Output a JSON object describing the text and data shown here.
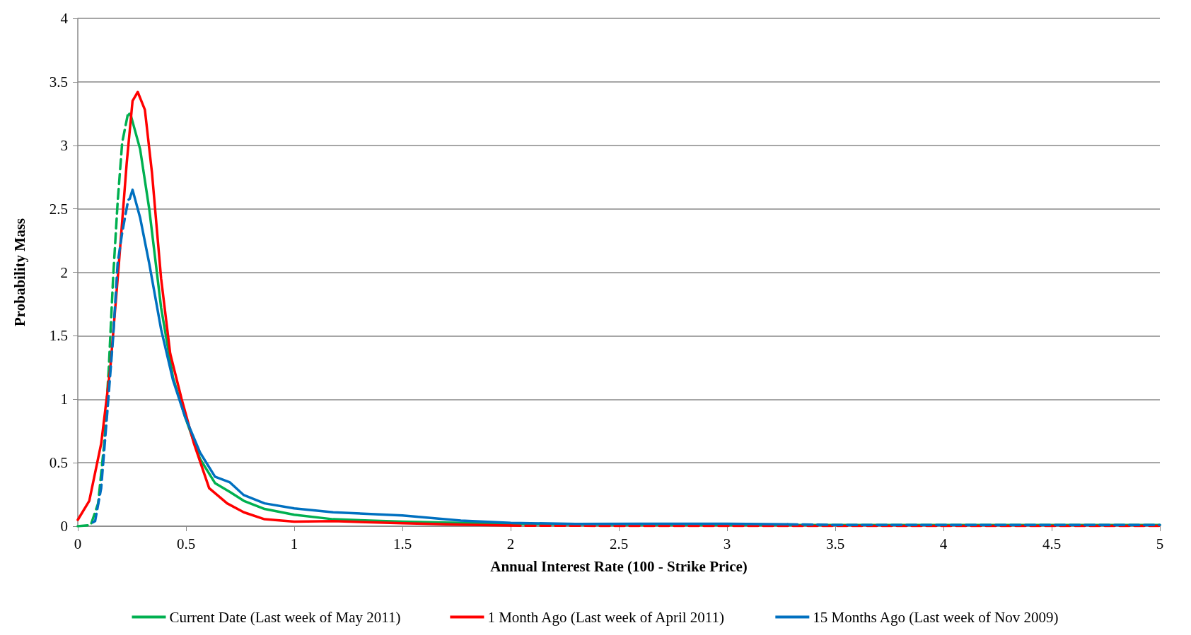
{
  "chart_data": {
    "type": "line",
    "xlabel": "Annual Interest Rate (100 - Strike Price)",
    "ylabel": "Probability Mass",
    "xlim": [
      0,
      5
    ],
    "xticks": [
      0,
      0.5,
      1,
      1.5,
      2,
      2.5,
      3,
      3.5,
      4,
      4.5,
      5
    ],
    "ylim": [
      0,
      4
    ],
    "yticks": [
      0,
      0.5,
      1,
      1.5,
      2,
      2.5,
      3,
      3.5,
      4
    ],
    "grid": "y",
    "legend": "bottom",
    "marker": "none",
    "series": [
      {
        "name": "Current Date (Last week of May 2011)",
        "color": "#00b050",
        "line_style": "solid",
        "x": [
          0.246,
          0.288,
          0.33,
          0.385,
          0.44,
          0.496,
          0.565,
          0.634,
          0.703,
          0.767,
          0.863,
          1.0,
          1.18,
          1.5,
          1.77,
          2.0,
          2.5,
          3,
          3.5,
          4,
          4.5,
          5
        ],
        "values": [
          3.23,
          2.97,
          2.5,
          1.72,
          1.17,
          0.86,
          0.53,
          0.34,
          0.27,
          0.2,
          0.136,
          0.09,
          0.055,
          0.036,
          0.027,
          0.018,
          0.012,
          0.01,
          0.01,
          0.01,
          0.01,
          0.01
        ]
      },
      {
        "color": "#00b050",
        "line_style": "dashed",
        "x": [
          0,
          0.06,
          0.094,
          0.122,
          0.143,
          0.163,
          0.184,
          0.205,
          0.233,
          0.246
        ],
        "values": [
          0,
          0.01,
          0.18,
          0.65,
          1.24,
          1.95,
          2.55,
          3.02,
          3.26,
          3.23
        ]
      },
      {
        "name": "1 Month Ago (Last week of April 2011)",
        "color": "#ff0000",
        "line_style": "solid",
        "x": [
          0,
          0.053,
          0.108,
          0.15,
          0.19,
          0.226,
          0.253,
          0.277,
          0.31,
          0.343,
          0.385,
          0.427,
          0.48,
          0.537,
          0.607,
          0.69,
          0.767,
          0.863,
          1.0,
          1.18,
          1.5,
          1.77,
          2.0
        ],
        "values": [
          0.05,
          0.2,
          0.65,
          1.24,
          2.07,
          2.86,
          3.35,
          3.42,
          3.28,
          2.78,
          1.95,
          1.36,
          1.0,
          0.65,
          0.3,
          0.18,
          0.11,
          0.055,
          0.036,
          0.04,
          0.024,
          0.013,
          0.005
        ]
      },
      {
        "color": "#ff0000",
        "line_style": "dashed",
        "x": [
          2.0,
          2.5,
          3,
          3.5,
          4,
          4.5,
          5
        ],
        "values": [
          0.005,
          0.003,
          0.003,
          0.003,
          0.003,
          0.003,
          0.003
        ]
      },
      {
        "name": "15 Months Ago (Last week of Nov 2009)",
        "color": "#0070c0",
        "line_style": "solid",
        "x": [
          0.24,
          0.253,
          0.288,
          0.33,
          0.385,
          0.44,
          0.496,
          0.565,
          0.634,
          0.703,
          0.767,
          0.863,
          1.0,
          1.18,
          1.5,
          1.77,
          2.0,
          2.3,
          2.6,
          3.0,
          3.28
        ],
        "values": [
          2.58,
          2.65,
          2.43,
          2.07,
          1.55,
          1.15,
          0.86,
          0.58,
          0.39,
          0.345,
          0.245,
          0.18,
          0.14,
          0.11,
          0.085,
          0.045,
          0.027,
          0.018,
          0.02,
          0.02,
          0.015
        ]
      },
      {
        "color": "#0070c0",
        "line_style": "dashed",
        "x": [
          0.07,
          0.08,
          0.108,
          0.136,
          0.163,
          0.184,
          0.205,
          0.233,
          0.24
        ],
        "values": [
          0.03,
          0.04,
          0.3,
          0.89,
          1.48,
          2.07,
          2.31,
          2.57,
          2.58
        ]
      },
      {
        "color": "#0070c0",
        "line_style": "dashed",
        "x": [
          3.28,
          3.5,
          4,
          4.5,
          5
        ],
        "values": [
          0.015,
          0.01,
          0.01,
          0.01,
          0.01
        ]
      }
    ]
  }
}
